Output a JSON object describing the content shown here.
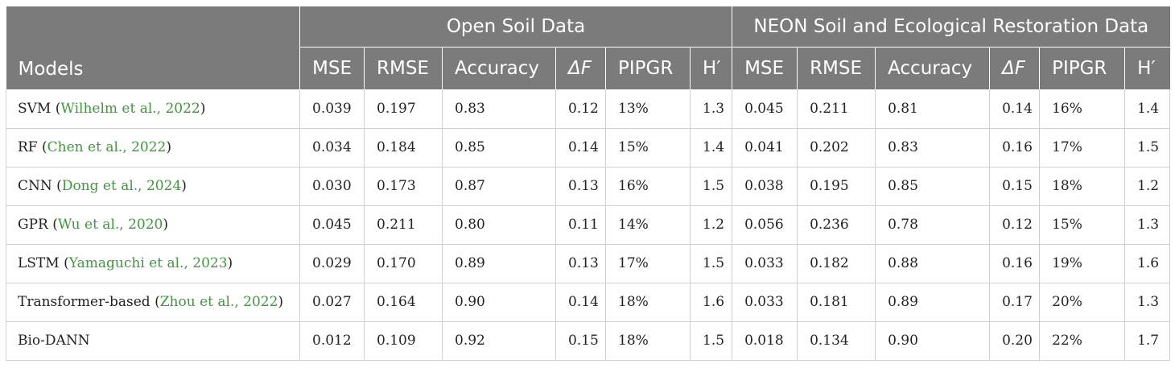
{
  "header": {
    "models_label": "Models",
    "groups": [
      "Open Soil Data",
      "NEON Soil and Ecological Restoration Data"
    ],
    "metrics": [
      "MSE",
      "RMSE",
      "Accuracy",
      "ΔF",
      "PIPGR",
      "H′"
    ]
  },
  "rows": [
    {
      "model": "SVM",
      "cite": "Wilhelm et al., 2022",
      "open": [
        "0.039",
        "0.197",
        "0.83",
        "0.12",
        "13%",
        "1.3"
      ],
      "neon": [
        "0.045",
        "0.211",
        "0.81",
        "0.14",
        "16%",
        "1.4"
      ]
    },
    {
      "model": "RF",
      "cite": "Chen et al., 2022",
      "open": [
        "0.034",
        "0.184",
        "0.85",
        "0.14",
        "15%",
        "1.4"
      ],
      "neon": [
        "0.041",
        "0.202",
        "0.83",
        "0.16",
        "17%",
        "1.5"
      ]
    },
    {
      "model": "CNN",
      "cite": "Dong et al., 2024",
      "open": [
        "0.030",
        "0.173",
        "0.87",
        "0.13",
        "16%",
        "1.5"
      ],
      "neon": [
        "0.038",
        "0.195",
        "0.85",
        "0.15",
        "18%",
        "1.2"
      ]
    },
    {
      "model": "GPR",
      "cite": "Wu et al., 2020",
      "open": [
        "0.045",
        "0.211",
        "0.80",
        "0.11",
        "14%",
        "1.2"
      ],
      "neon": [
        "0.056",
        "0.236",
        "0.78",
        "0.12",
        "15%",
        "1.3"
      ]
    },
    {
      "model": "LSTM",
      "cite": "Yamaguchi et al., 2023",
      "open": [
        "0.029",
        "0.170",
        "0.89",
        "0.13",
        "17%",
        "1.5"
      ],
      "neon": [
        "0.033",
        "0.182",
        "0.88",
        "0.16",
        "19%",
        "1.6"
      ]
    },
    {
      "model": "Transformer-based",
      "cite": "Zhou et al., 2022",
      "open": [
        "0.027",
        "0.164",
        "0.90",
        "0.14",
        "18%",
        "1.6"
      ],
      "neon": [
        "0.033",
        "0.181",
        "0.89",
        "0.17",
        "20%",
        "1.3"
      ]
    },
    {
      "model": "Bio-DANN",
      "cite": "",
      "open": [
        "0.012",
        "0.109",
        "0.92",
        "0.15",
        "18%",
        "1.5"
      ],
      "neon": [
        "0.018",
        "0.134",
        "0.90",
        "0.20",
        "22%",
        "1.7"
      ]
    }
  ]
}
